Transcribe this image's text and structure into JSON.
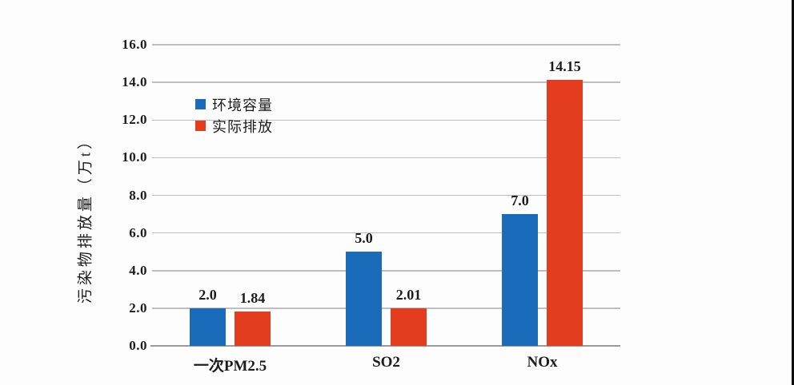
{
  "chart_data": {
    "type": "bar",
    "title": "",
    "categories": [
      "一次PM2.5",
      "SO2",
      "NOx"
    ],
    "series": [
      {
        "name": "环境容量",
        "color": "#1a6cba",
        "values": [
          2.0,
          5.0,
          7.0
        ],
        "value_labels": [
          "2.0",
          "5.0",
          "7.0"
        ]
      },
      {
        "name": "实际排放",
        "color": "#e43c1e",
        "values": [
          1.84,
          2.01,
          14.15
        ],
        "value_labels": [
          "1.84",
          "2.01",
          "14.15"
        ]
      }
    ],
    "xlabel": "",
    "ylabel": "污染物排放量（万t）",
    "ylim": [
      0,
      16
    ],
    "yticks": [
      "0.0",
      "2.0",
      "4.0",
      "6.0",
      "8.0",
      "10.0",
      "12.0",
      "14.0",
      "16.0"
    ],
    "grid": true,
    "legend_position": "inside-upper-left"
  },
  "colors": {
    "series_blue": "#1a6cba",
    "series_red": "#e43c1e",
    "gridline": "#bfbfbf",
    "axis_line": "#9a9a9a",
    "text": "#1c1c1c",
    "background": "#fdfdfd",
    "screen_edge": "#0a0a0a"
  }
}
